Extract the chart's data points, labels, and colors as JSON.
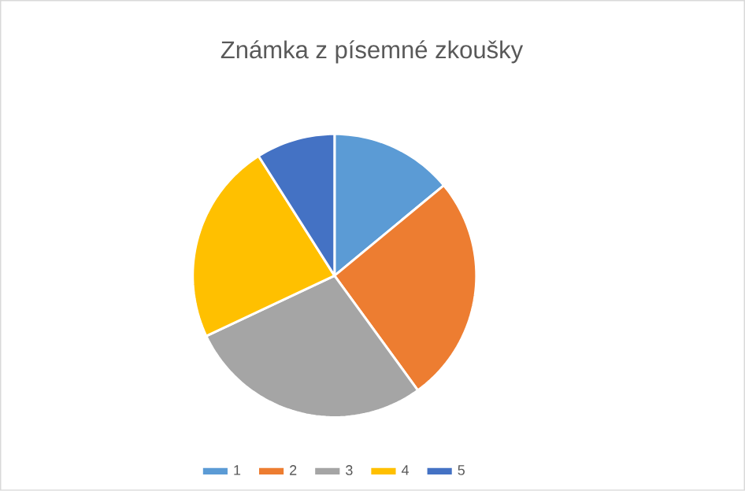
{
  "chart_data": {
    "type": "pie",
    "title": "Známka z písemné zkoušky",
    "categories": [
      "1",
      "2",
      "3",
      "4",
      "5"
    ],
    "values": [
      14,
      26,
      28,
      23,
      9
    ],
    "colors": [
      "#5b9bd5",
      "#ed7d31",
      "#a5a5a5",
      "#ffc000",
      "#4472c4"
    ],
    "legend": "bottom"
  }
}
